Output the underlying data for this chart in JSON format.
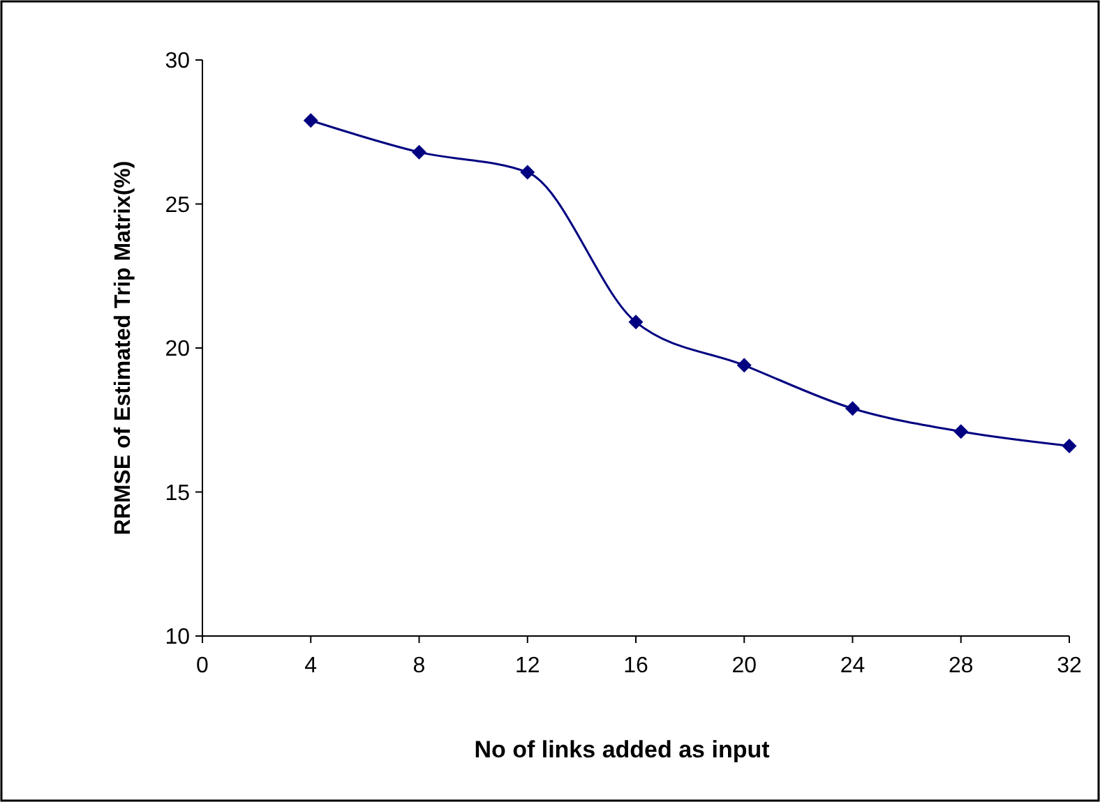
{
  "chart_data": {
    "type": "line",
    "xlabel": "No of links added as input",
    "ylabel": "RRMSE of Estimated Trip Matrix(%)",
    "x": [
      4,
      8,
      12,
      16,
      20,
      24,
      28,
      32
    ],
    "series": [
      {
        "color": "#000080",
        "values": [
          27.9,
          26.8,
          26.1,
          20.9,
          19.4,
          17.9,
          17.1,
          16.6
        ]
      }
    ],
    "xlim": [
      0,
      32
    ],
    "xticks": [
      0,
      4,
      8,
      12,
      16,
      20,
      24,
      28,
      32
    ],
    "ylim": [
      10,
      30
    ],
    "yticks": [
      10,
      15,
      20,
      25,
      30
    ],
    "grid": false,
    "marker": "diamond",
    "line_style": "solid"
  }
}
